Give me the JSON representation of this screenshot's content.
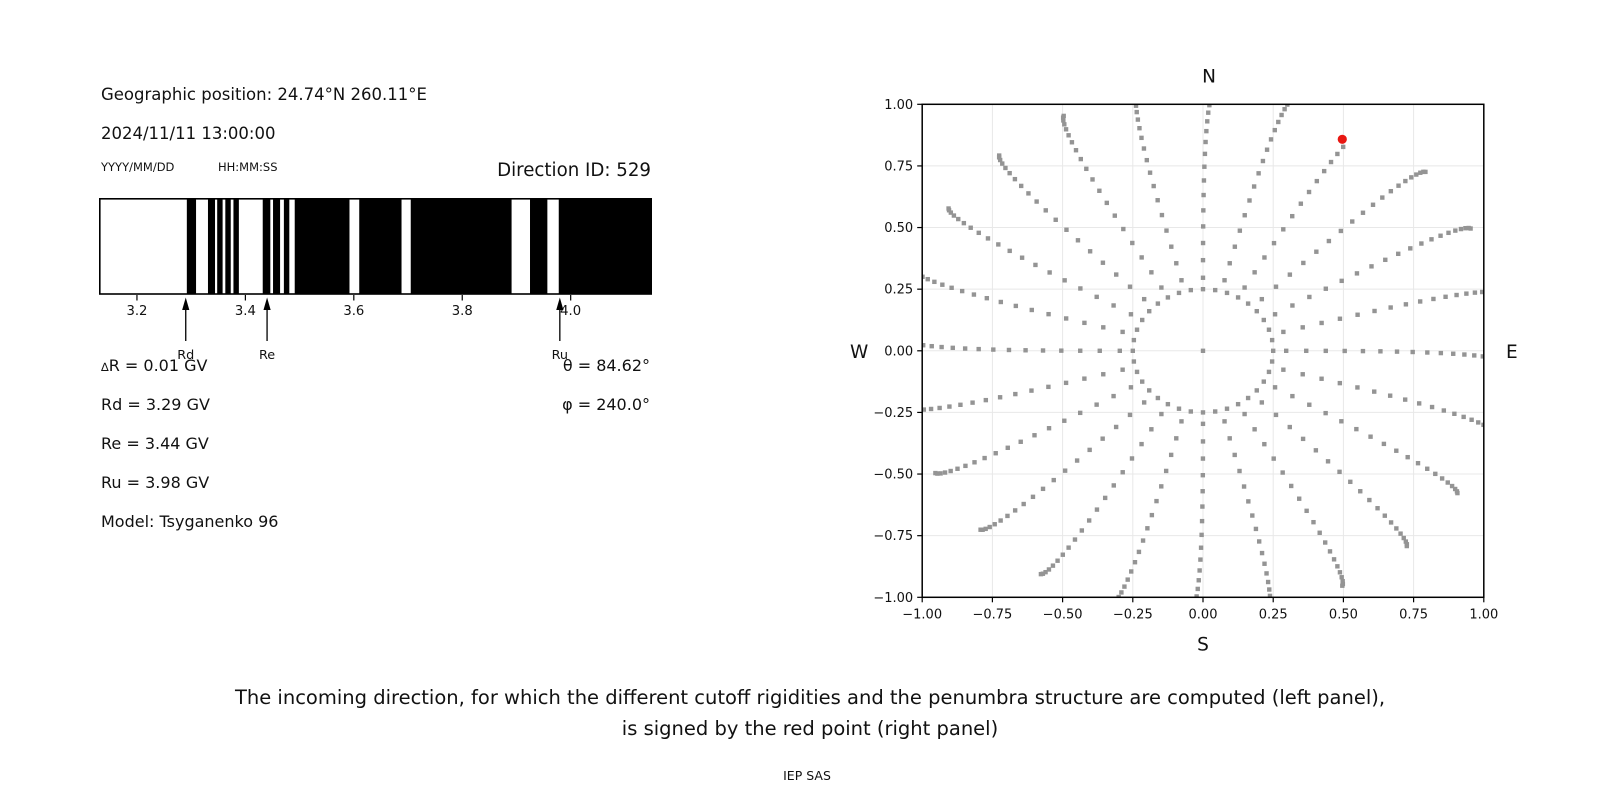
{
  "left_panel": {
    "geo_position": "Geographic position: 24.74°N 260.11°E",
    "datetime": "2024/11/11 13:00:00",
    "date_format": "YYYY/MM/DD",
    "time_format": "HH:MM:SS",
    "direction_id": "Direction ID: 529",
    "delta_symbol": "∆",
    "delta_rest": "R = 0.01 GV",
    "rd_line": "Rd = 3.29 GV",
    "re_line": "Re = 3.44 GV",
    "ru_line": "Ru = 3.98 GV",
    "theta_line": "θ = 84.62°",
    "phi_line": "φ = 240.0°",
    "model_line": "Model: Tsyganenko 96"
  },
  "caption": {
    "line1": "The incoming direction, for which the different cutoff rigidities and the penumbra structure are computed (left panel),",
    "line2": "is signed by the red point (right panel)",
    "credit": "IEP SAS"
  },
  "chart_data": [
    {
      "type": "bar",
      "name": "penumbra-structure",
      "xlim": [
        3.13,
        4.15
      ],
      "xticks": [
        3.2,
        3.4,
        3.6,
        3.8,
        4.0
      ],
      "band_color": "#000000",
      "allowed_bands_gv": [
        [
          3.292,
          3.309
        ],
        [
          3.331,
          3.344
        ],
        [
          3.348,
          3.358
        ],
        [
          3.363,
          3.373
        ],
        [
          3.378,
          3.388
        ],
        [
          3.432,
          3.446
        ],
        [
          3.451,
          3.464
        ],
        [
          3.471,
          3.481
        ],
        [
          3.491,
          3.592
        ],
        [
          3.61,
          3.688
        ],
        [
          3.705,
          3.891
        ],
        [
          3.925,
          3.957
        ],
        [
          3.978,
          4.15
        ]
      ],
      "arrows": [
        {
          "label": "Rd",
          "value": 3.29
        },
        {
          "label": "Re",
          "value": 3.44
        },
        {
          "label": "Ru",
          "value": 3.98
        }
      ],
      "delta_r_gv": 0.01,
      "rd_gv": 3.29,
      "re_gv": 3.44,
      "ru_gv": 3.98
    },
    {
      "type": "scatter",
      "name": "incoming-directions",
      "xlim": [
        -1.0,
        1.0
      ],
      "ylim": [
        -1.0,
        1.0
      ],
      "xticks": [
        -1.0,
        -0.75,
        -0.5,
        -0.25,
        0.0,
        0.25,
        0.5,
        0.75,
        1.0
      ],
      "yticks": [
        -1.0,
        -0.75,
        -0.5,
        -0.25,
        0.0,
        0.25,
        0.5,
        0.75,
        1.0
      ],
      "grid": true,
      "grid_color": "#e8e8e8",
      "dot_color": "#949494",
      "compass": {
        "n": "N",
        "s": "S",
        "e": "E",
        "w": "W"
      },
      "center_dot": true,
      "ring": {
        "radius": 0.25,
        "count": 36
      },
      "spokes": {
        "azimuths_deg": [
          0,
          15,
          30,
          45,
          60,
          75,
          90,
          105,
          120,
          135,
          150,
          165,
          180,
          195,
          210,
          225,
          240,
          255,
          270,
          285,
          300,
          315,
          330,
          345
        ],
        "zenith_start_deg": 16,
        "zenith_step_deg": 4,
        "zenith_end_default_deg": 88,
        "zenith_end_overrides": {
          "30": 64
        },
        "radius_scale": 1.075,
        "curl_deg": 2.5
      },
      "red_point": {
        "x": 0.496,
        "y": 0.858,
        "color": "#e81712"
      }
    }
  ]
}
